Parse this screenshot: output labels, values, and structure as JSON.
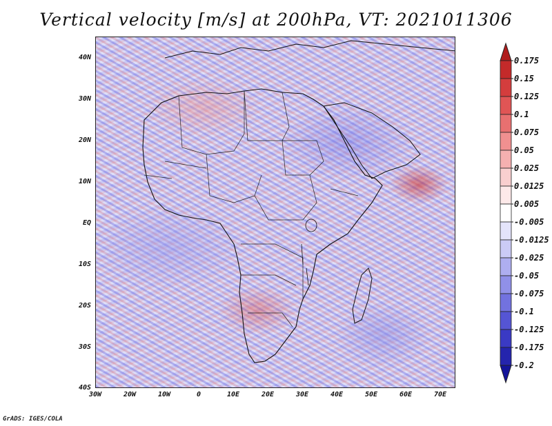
{
  "title": "Vertical velocity [m/s] at 200hPa, VT: 2021011306",
  "map": {
    "lat_labels": [
      "40N",
      "30N",
      "20N",
      "10N",
      "EQ",
      "10S",
      "20S",
      "30S",
      "40S"
    ],
    "lon_labels": [
      "30W",
      "20W",
      "10W",
      "0",
      "10E",
      "20E",
      "30E",
      "40E",
      "50E",
      "60E",
      "70E"
    ],
    "lat_range": [
      -40,
      45
    ],
    "lon_range": [
      -30,
      75
    ]
  },
  "colorbar": {
    "labels": [
      "0.175",
      "0.15",
      "0.125",
      "0.1",
      "0.075",
      "0.05",
      "0.025",
      "0.0125",
      "0.005",
      "-0.005",
      "-0.0125",
      "-0.025",
      "-0.05",
      "-0.075",
      "-0.1",
      "-0.125",
      "-0.175",
      "-0.2"
    ],
    "colors": [
      "#b01c1c",
      "#c42a2a",
      "#d43d3d",
      "#e05555",
      "#e87070",
      "#f09090",
      "#f5b0b0",
      "#f9cfcf",
      "#fde9e9",
      "#ffffff",
      "#e4e4fb",
      "#cbcbf6",
      "#aeaef0",
      "#9090e8",
      "#7272df",
      "#5555d4",
      "#3a3ac4",
      "#2424ad",
      "#14149a"
    ]
  },
  "credit": "GrADS: IGES/COLA"
}
